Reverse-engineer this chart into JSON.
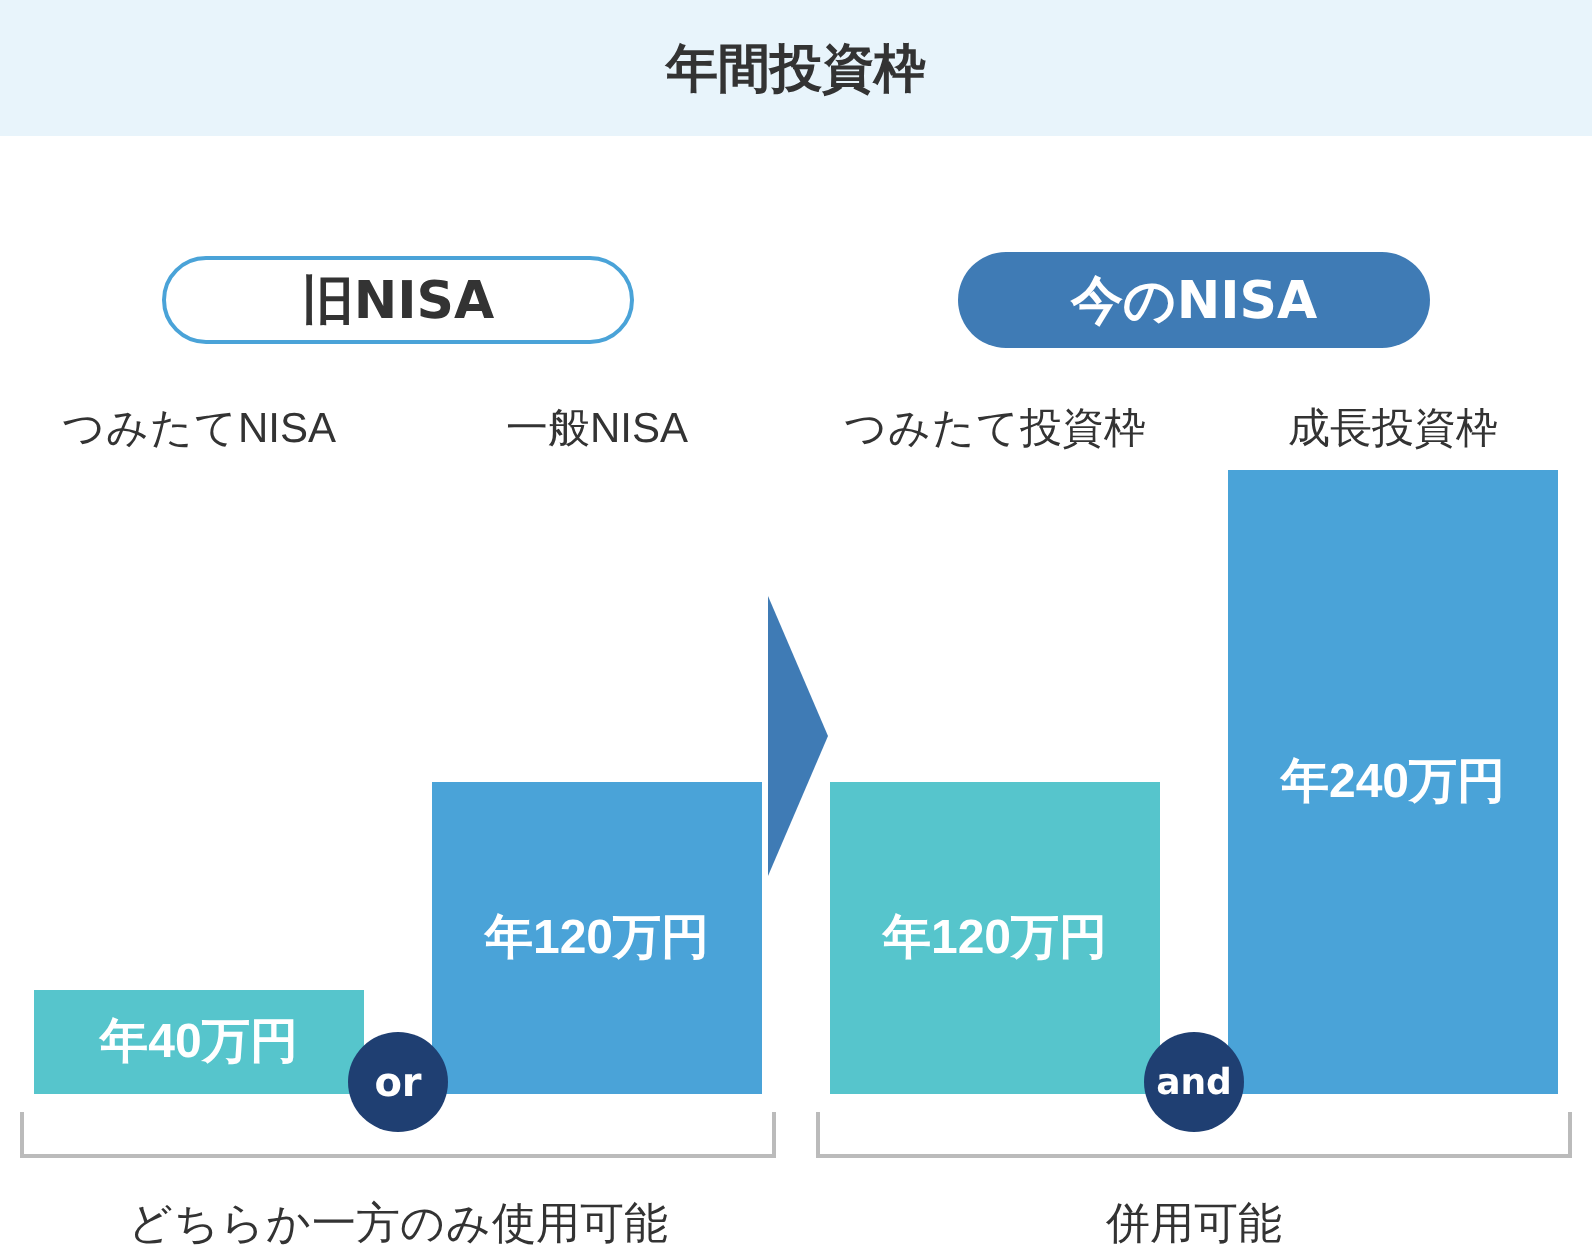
{
  "chart_data": {
    "type": "bar",
    "title": "年間投資枠",
    "categories": [
      "つみたてNISA",
      "一般NISA",
      "つみたて投資枠",
      "成長投資枠"
    ],
    "values": [
      40,
      120,
      120,
      240
    ],
    "colors": [
      "#56c5cc",
      "#4aa3d8",
      "#56c5cc",
      "#4aa3d8"
    ],
    "value_labels": [
      "年40万円",
      "年120万円",
      "年120万円",
      "年240万円"
    ],
    "annotations": [
      "旧NISA",
      "今のNISA",
      "or",
      "and",
      "どちらか一方のみ使用可能",
      "併用可能"
    ]
  }
}
